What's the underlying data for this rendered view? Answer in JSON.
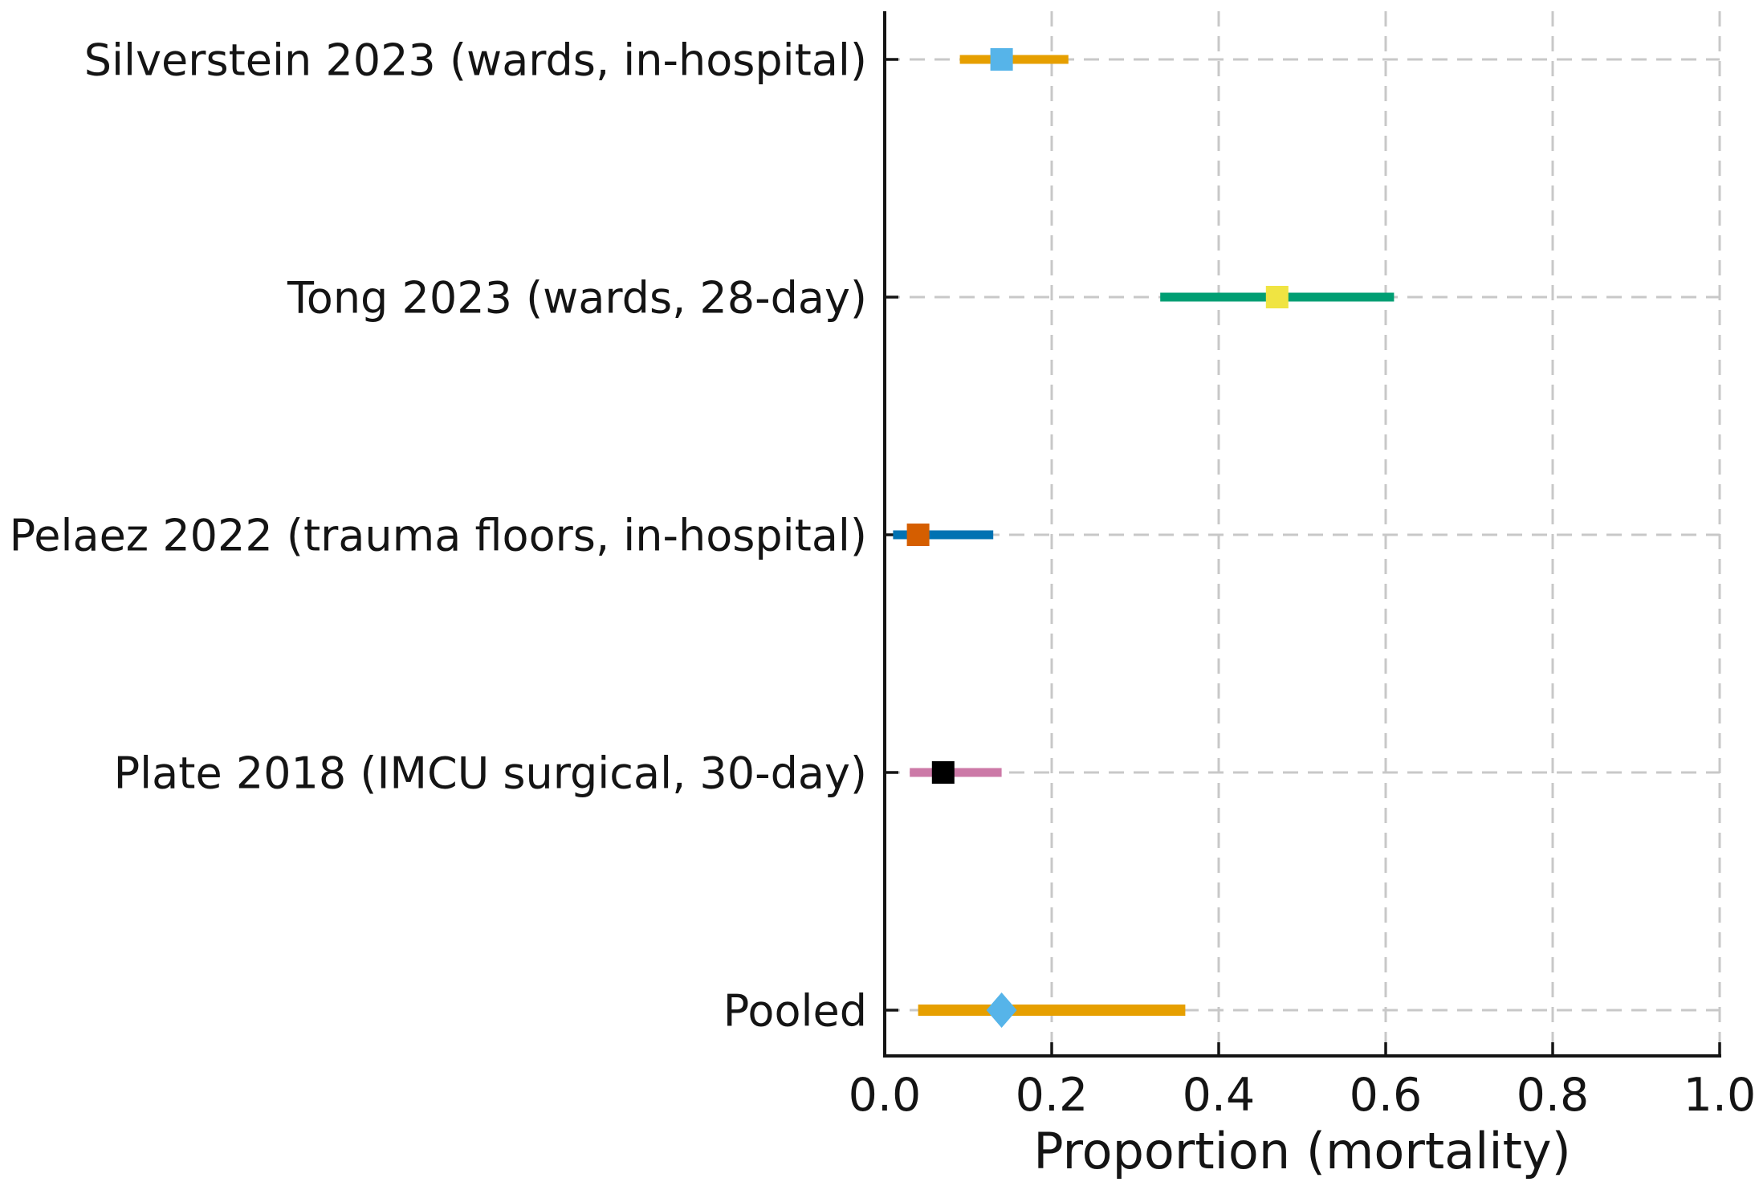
{
  "chart_data": {
    "type": "scatter",
    "subtype": "forest-plot",
    "title": "",
    "xlabel": "Proportion (mortality)",
    "ylabel": "",
    "xlim": [
      0.0,
      1.0
    ],
    "grid": true,
    "grid_style": "dashed",
    "legend_position": "none",
    "xticks": [
      {
        "value": 0.0,
        "label": "0.0"
      },
      {
        "value": 0.2,
        "label": "0.2"
      },
      {
        "value": 0.4,
        "label": "0.4"
      },
      {
        "value": 0.6,
        "label": "0.6"
      },
      {
        "value": 0.8,
        "label": "0.8"
      },
      {
        "value": 1.0,
        "label": "1.0"
      }
    ],
    "studies": [
      {
        "label": "Silverstein 2023 (wards, in-hospital)",
        "estimate": 0.14,
        "ci_low": 0.09,
        "ci_high": 0.22,
        "marker": "square",
        "marker_color": "#56B4E9",
        "line_color": "#E69F00"
      },
      {
        "label": "Tong 2023 (wards, 28-day)",
        "estimate": 0.47,
        "ci_low": 0.33,
        "ci_high": 0.61,
        "marker": "square",
        "marker_color": "#F0E442",
        "line_color": "#009E73"
      },
      {
        "label": "Pelaez 2022 (trauma floors, in-hospital)",
        "estimate": 0.04,
        "ci_low": 0.01,
        "ci_high": 0.13,
        "marker": "square",
        "marker_color": "#D55E00",
        "line_color": "#0072B2"
      },
      {
        "label": "Plate 2018 (IMCU surgical, 30-day)",
        "estimate": 0.07,
        "ci_low": 0.03,
        "ci_high": 0.14,
        "marker": "square",
        "marker_color": "#000000",
        "line_color": "#CC79A7"
      },
      {
        "label": "Pooled",
        "estimate": 0.14,
        "ci_low": 0.04,
        "ci_high": 0.36,
        "marker": "diamond",
        "marker_color": "#56B4E9",
        "line_color": "#E69F00"
      }
    ],
    "style": {
      "background_color": "#ffffff",
      "grid_color": "#c8c8c8",
      "axis_color": "#141414",
      "text_color": "#141414"
    }
  }
}
